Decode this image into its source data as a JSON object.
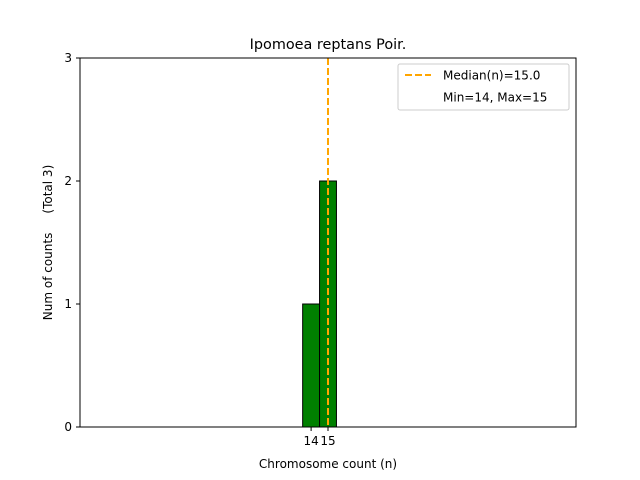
{
  "chart_data": {
    "type": "bar",
    "title": "Ipomoea reptans Poir.",
    "xlabel": "Chromosome count (n)",
    "ylabel": "Num of counts     (Total 3)",
    "ylim": [
      0,
      3
    ],
    "yticks": [
      0,
      1,
      2,
      3
    ],
    "xticks": [
      14,
      15
    ],
    "xtick_labels": [
      "14",
      "15"
    ],
    "xlim": [
      0.32,
      29.68
    ],
    "bar_color": "#008000",
    "bar_edge_color": "#000000",
    "bars": [
      {
        "x": 14,
        "value": 1
      },
      {
        "x": 15,
        "value": 2
      },
      {
        "x": 16,
        "value": 0
      },
      {
        "x": 17,
        "value": 0
      },
      {
        "x": 18,
        "value": 0
      }
    ],
    "median": {
      "value": 15.0,
      "label": "Median(n)=15.0",
      "color": "#FFA500"
    },
    "legend": {
      "position": "top-right",
      "entries": [
        "Median(n)=15.0",
        "Min=14, Max=15"
      ]
    }
  }
}
